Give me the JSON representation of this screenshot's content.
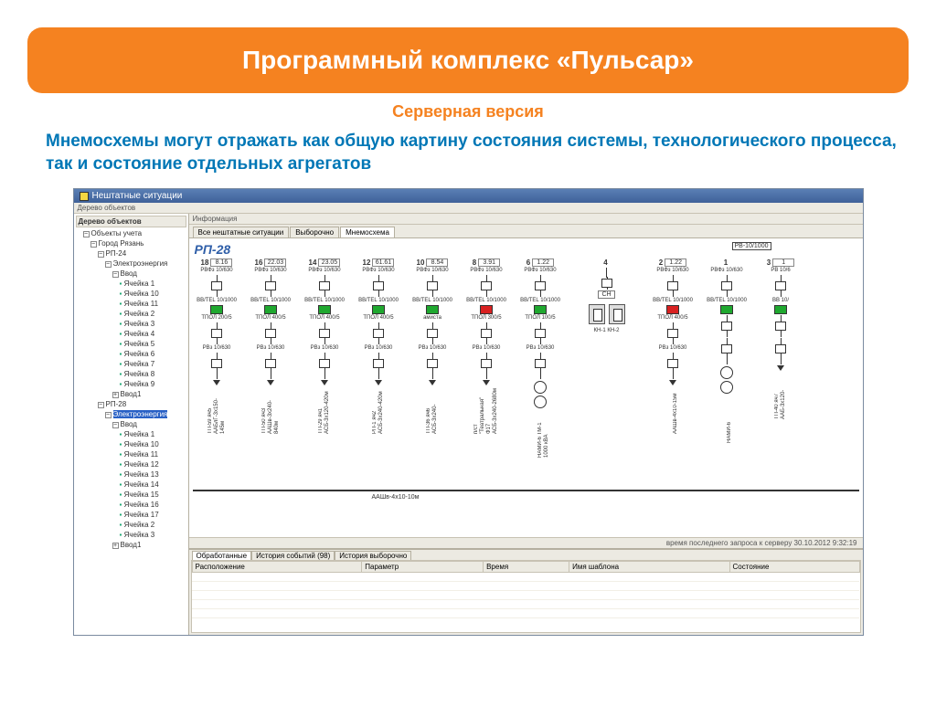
{
  "header": {
    "title": "Программный комплекс «Пульсар»"
  },
  "subtitle": "Серверная версия",
  "description": "Мнемосхемы могут отражать как общую картину состояния системы, технологического процесса, так и состояние отдельных агрегатов",
  "app": {
    "window_title": "Нештатные ситуации",
    "menubar": "Дерево объектов",
    "info_label": "Информация",
    "tabs": [
      "Все нештатные ситуации",
      "Выборочно",
      "Мнемосхема"
    ],
    "active_tab": 2,
    "status": "время последнего запроса к серверу 30.10.2012 9:32:19"
  },
  "tree": {
    "header": "Дерево объектов",
    "root": "Объекты учета",
    "city": "Город Рязань",
    "nodes": [
      {
        "name": "РП-24",
        "children": [
          {
            "name": "Электроэнергия",
            "children": [
              {
                "name": "Ввод",
                "cells": [
                  "Ячейка 1",
                  "Ячейка 10",
                  "Ячейка 11",
                  "Ячейка 2",
                  "Ячейка 3",
                  "Ячейка 4",
                  "Ячейка 5",
                  "Ячейка 6",
                  "Ячейка 7",
                  "Ячейка 8",
                  "Ячейка 9"
                ]
              },
              {
                "name": "Ввод1",
                "cells": []
              }
            ]
          }
        ]
      },
      {
        "name": "РП-28",
        "children": [
          {
            "name": "Электроэнергия",
            "selected": true,
            "children": [
              {
                "name": "Ввод",
                "cells": [
                  "Ячейка 1",
                  "Ячейка 10",
                  "Ячейка 11",
                  "Ячейка 12",
                  "Ячейка 13",
                  "Ячейка 14",
                  "Ячейка 15",
                  "Ячейка 16",
                  "Ячейка 17",
                  "Ячейка 2",
                  "Ячейка 3"
                ]
              },
              {
                "name": "Ввод1",
                "cells": []
              }
            ]
          }
        ]
      }
    ]
  },
  "scheme": {
    "title": "РП-28",
    "top_extra": {
      "label": "РВ-10/1000"
    },
    "busbar_label": "ААШв-4х10-10м",
    "bays": [
      {
        "num": "18",
        "readout": "8.16",
        "eq": [
          "РВФз 10/630",
          "ВВ/ТЕL 10/1000",
          "ТПОЛ 200/5",
          "РВз 10/630"
        ],
        "status": "green",
        "feeder": "ТП-59 яч5",
        "cable": "ААБлГ-3х150-145м"
      },
      {
        "num": "16",
        "readout": "22.03",
        "eq": [
          "РВФз 10/630",
          "ВВ/ТЕL 10/1000",
          "ТПОЛ 400/5",
          "РВз 10/630"
        ],
        "status": "green",
        "feeder": "ТП-50 яч3",
        "cable": "ААШв-3х240-840м"
      },
      {
        "num": "14",
        "readout": "23.05",
        "eq": [
          "РВФз 10/630",
          "ВВ/ТЕL 10/1000",
          "ТПОЛ 400/5",
          "РВз 10/630"
        ],
        "status": "green",
        "feeder": "ТП-29 яч1",
        "cable": "АСБ-3х120-420м"
      },
      {
        "num": "12",
        "readout": "61.61",
        "eq": [
          "РВФз 10/630",
          "ВВ/ТЕL 10/1000",
          "ТПОЛ 400/5",
          "РВз 10/630"
        ],
        "status": "green",
        "feeder": "РП-1 яч2",
        "cable": "АСБ-3х240-420м"
      },
      {
        "num": "10",
        "readout": "8.54",
        "eq": [
          "РВФз 10/630",
          "ВВ/ТЕL 10/1000",
          "амиста",
          "РВз 10/630"
        ],
        "status": "green",
        "feeder": "ТП-36 яч6",
        "cable": "АСБ-3х240-"
      },
      {
        "num": "8",
        "readout": "3.91",
        "eq": [
          "РВФз 10/630",
          "ВВ/ТЕL 10/1000",
          "ТПОЛ 300/5",
          "РВз 10/630"
        ],
        "status": "red",
        "feeder": "п/ст \"Театральная\" Ф17",
        "cable": "АСБ-3х240-2680м"
      },
      {
        "num": "6",
        "readout": "1.22",
        "eq": [
          "РВФз 10/630",
          "ВВ/ТЕL 10/1000",
          "ТПОЛ 100/5",
          "РВз 10/630"
        ],
        "status": "green",
        "feeder": "",
        "cable": "НАМИ-6 ТМ-1 1000 кВА"
      },
      {
        "num": "4",
        "readout": "",
        "eq": [
          "СН"
        ],
        "status": "special",
        "feeder": "КН-1  КН-2",
        "cable": ""
      },
      {
        "num": "2",
        "readout": "1.22",
        "eq": [
          "РВФз 10/630",
          "ВВ/ТЕL 10/1000",
          "ТПОЛ 400/5",
          "РВз 10/630"
        ],
        "status": "red",
        "feeder": "",
        "cable": "ААШв-4х10-15м"
      },
      {
        "num": "1",
        "readout": "",
        "eq": [
          "РВФз 10/630",
          "ВВ/ТЕL 10/1000",
          "",
          ""
        ],
        "status": "green",
        "feeder": "",
        "cable": "НАМИ-6"
      },
      {
        "num": "3",
        "readout": "1",
        "eq": [
          "РВ 10/6",
          "ВВ 10/",
          "",
          ""
        ],
        "status": "green",
        "feeder": "ТП-40 яч7",
        "cable": "ААБ-3х120-"
      }
    ]
  },
  "bottom": {
    "tabs": [
      "Обработанные",
      "История событий (98)",
      "История выборочно"
    ],
    "active_tab": 0,
    "columns": [
      "Расположение",
      "Параметр",
      "Время",
      "Имя шаблона",
      "Состояние"
    ]
  },
  "colors": {
    "accent": "#f58220",
    "link": "#0077b6",
    "switch_on": "#1fa82f",
    "switch_off": "#d92121",
    "window_chrome": "#5a7fb5"
  }
}
